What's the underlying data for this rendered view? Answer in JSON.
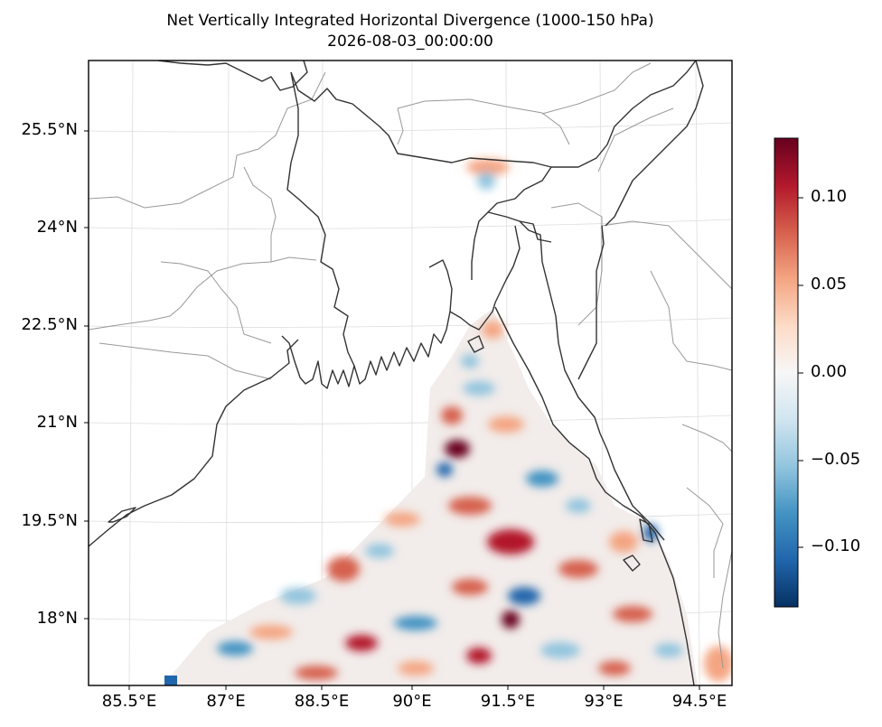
{
  "title": "Net Vertically Integrated Horizontal Divergence (1000-150 hPa)",
  "subtitle": "2026-08-03_00:00:00",
  "lat_labels": [
    "25.5°N",
    "24°N",
    "22.5°N",
    "21°N",
    "19.5°N",
    "18°N"
  ],
  "lon_labels": [
    "85.5°E",
    "87°E",
    "88.5°E",
    "90°E",
    "91.5°E",
    "93°E",
    "94.5°E"
  ],
  "colorbar": {
    "ticks": [
      "0.10",
      "0.05",
      "0.00",
      "−0.05",
      "−0.10"
    ],
    "colormap": "RdBu_r",
    "colors": {
      "max": "#67001f",
      "mid": "#f7f7f7",
      "min": "#053061"
    }
  },
  "colors": {
    "coastline": "#333333",
    "borders": "#999999",
    "gridlines": "#dddddd",
    "frame": "#000000"
  }
}
